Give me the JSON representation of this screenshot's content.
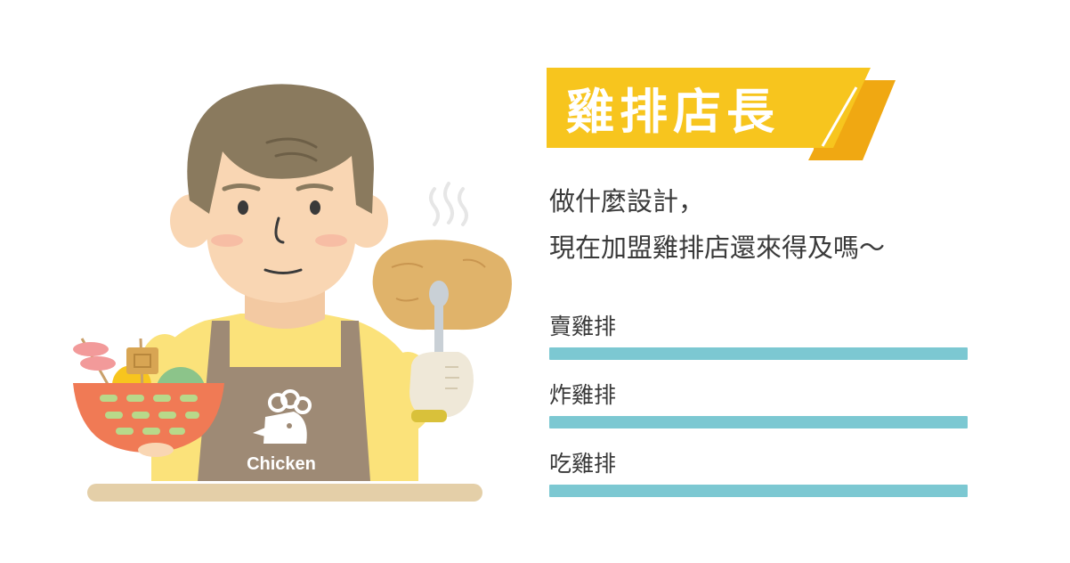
{
  "title": "雞排店長",
  "question": {
    "line1": "做什麼設計，",
    "line2": "現在加盟雞排店還來得及嗎～"
  },
  "apron_text": "Chicken",
  "options": [
    {
      "label": "賣雞排"
    },
    {
      "label": "炸雞排"
    },
    {
      "label": "吃雞排"
    }
  ],
  "colors": {
    "banner": "#F7C51E",
    "banner_shadow": "#F0A812",
    "bar": "#7CC8D2",
    "text": "#3A3A3A",
    "hair": "#8A7A5E",
    "skin": "#F9D6B3",
    "shirt": "#FBE27A",
    "apron": "#9E8A75",
    "basket": "#F07A55",
    "counter": "#E4CFA8"
  },
  "icons": [
    "chicken-head-icon",
    "steam-icon"
  ]
}
